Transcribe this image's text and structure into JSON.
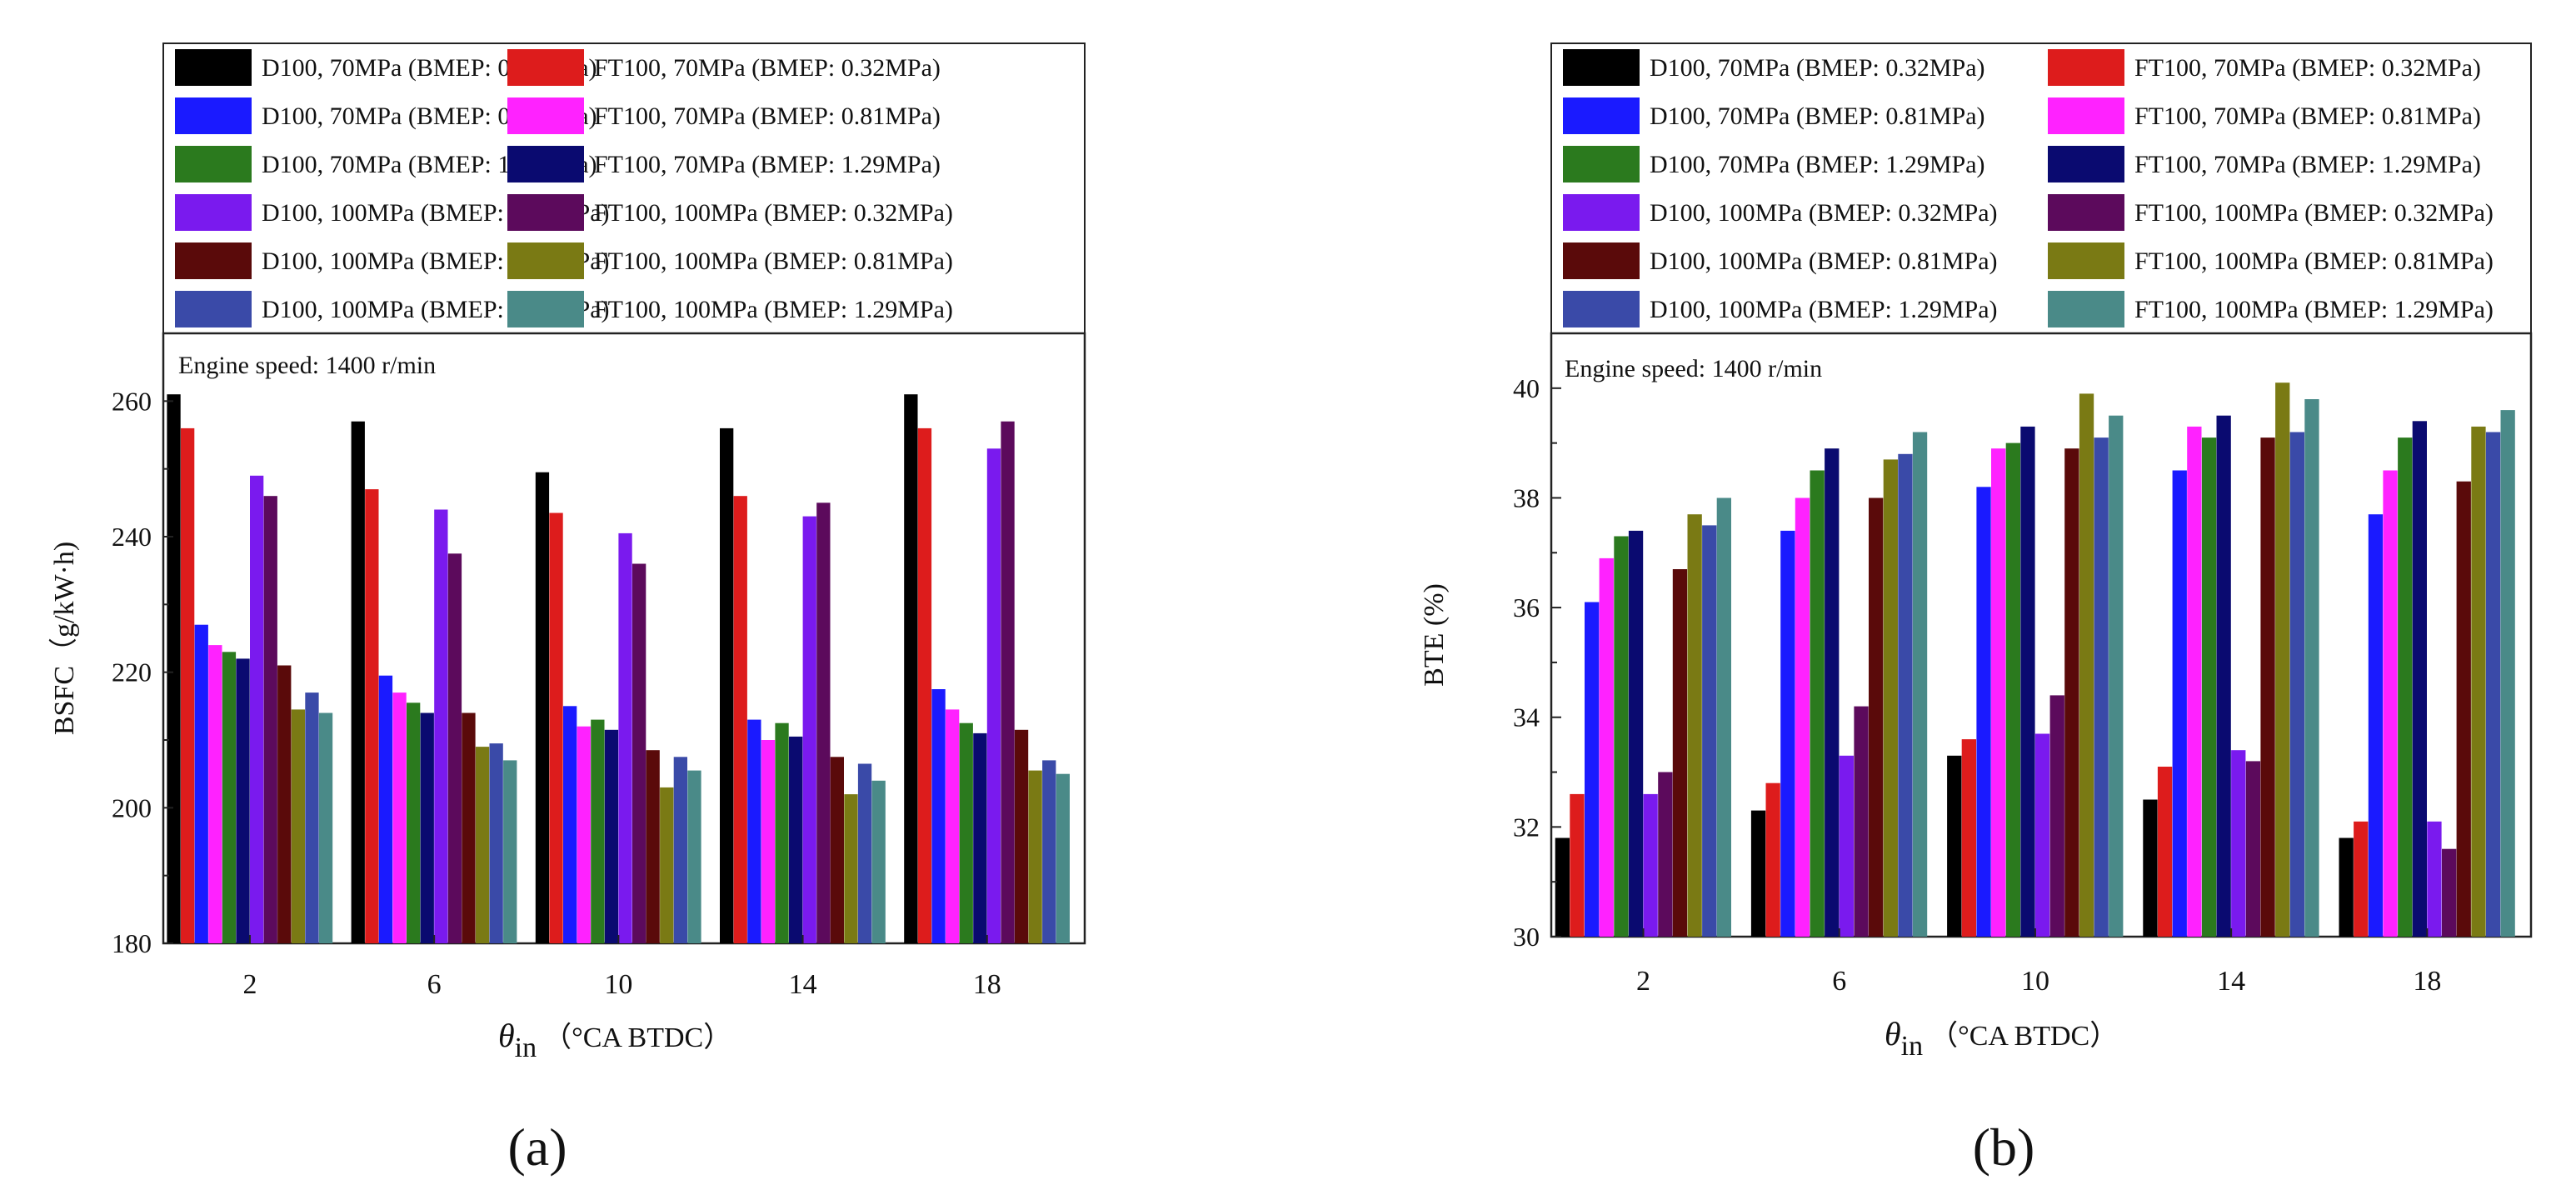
{
  "chart_data": [
    {
      "panel_label": "a",
      "type": "bar",
      "title": "",
      "annotation": "Engine speed: 1400 r/min",
      "ylabel": "BSFC（g/kW·h)",
      "xlabel_main": "θ",
      "xlabel_sub": "in",
      "xlabel_unit": "（°CA BTDC）",
      "categories": [
        "2",
        "6",
        "10",
        "14",
        "18"
      ],
      "ylim": [
        180,
        270
      ],
      "yticks": [
        180,
        200,
        220,
        240,
        260
      ],
      "legend_position": "top",
      "series": [
        {
          "name": "D100, 70MPa (BMEP: 0.32MPa)",
          "color": "#000000",
          "values": [
            261,
            257,
            249.5,
            256,
            261
          ]
        },
        {
          "name": "FT100, 70MPa (BMEP: 0.32MPa)",
          "color": "#dd1c1c",
          "values": [
            256,
            247,
            243.5,
            246,
            256
          ]
        },
        {
          "name": "D100, 70MPa (BMEP: 0.81MPa)",
          "color": "#1a1aff",
          "values": [
            227,
            219.5,
            215,
            213,
            217.5
          ]
        },
        {
          "name": "FT100, 70MPa (BMEP: 0.81MPa)",
          "color": "#ff22ff",
          "values": [
            224,
            217,
            212,
            210,
            214.5
          ]
        },
        {
          "name": "D100, 70MPa (BMEP: 1.29MPa)",
          "color": "#2b7a1e",
          "values": [
            223,
            215.5,
            213,
            212.5,
            212.5
          ]
        },
        {
          "name": "FT100, 70MPa (BMEP: 1.29MPa)",
          "color": "#0a0a70",
          "values": [
            222,
            214,
            211.5,
            210.5,
            211
          ]
        },
        {
          "name": "D100, 100MPa (BMEP: 0.32MPa)",
          "color": "#7a1aee",
          "values": [
            249,
            244,
            240.5,
            243,
            253
          ]
        },
        {
          "name": "FT100, 100MPa (BMEP: 0.32MPa)",
          "color": "#5c0a5c",
          "values": [
            246,
            237.5,
            236,
            245,
            257
          ]
        },
        {
          "name": "D100, 100MPa (BMEP: 0.81MPa)",
          "color": "#5a0a0a",
          "values": [
            221,
            214,
            208.5,
            207.5,
            211.5
          ]
        },
        {
          "name": "FT100, 100MPa (BMEP: 0.81MPa)",
          "color": "#7a7a14",
          "values": [
            214.5,
            209,
            203,
            202,
            205.5
          ]
        },
        {
          "name": "D100, 100MPa (BMEP: 1.29MPa)",
          "color": "#3a4aa8",
          "values": [
            217,
            209.5,
            207.5,
            206.5,
            207
          ]
        },
        {
          "name": "FT100, 100MPa (BMEP: 1.29MPa)",
          "color": "#4a8a88",
          "values": [
            214,
            207,
            205.5,
            204,
            205
          ]
        }
      ]
    },
    {
      "panel_label": "b",
      "type": "bar",
      "title": "",
      "annotation": "Engine speed: 1400 r/min",
      "ylabel": "BTE (%)",
      "xlabel_main": "θ",
      "xlabel_sub": "in",
      "xlabel_unit": "（°CA BTDC）",
      "categories": [
        "2",
        "6",
        "10",
        "14",
        "18"
      ],
      "ylim": [
        30,
        41
      ],
      "yticks": [
        30,
        32,
        34,
        36,
        38,
        40
      ],
      "legend_position": "top",
      "series": [
        {
          "name": "D100, 70MPa (BMEP: 0.32MPa)",
          "color": "#000000",
          "values": [
            31.8,
            32.3,
            33.3,
            32.5,
            31.8
          ]
        },
        {
          "name": "FT100, 70MPa (BMEP: 0.32MPa)",
          "color": "#dd1c1c",
          "values": [
            32.6,
            32.8,
            33.6,
            33.1,
            32.1
          ]
        },
        {
          "name": "D100, 70MPa (BMEP: 0.81MPa)",
          "color": "#1a1aff",
          "values": [
            36.1,
            37.4,
            38.2,
            38.5,
            37.7
          ]
        },
        {
          "name": "FT100, 70MPa (BMEP: 0.81MPa)",
          "color": "#ff22ff",
          "values": [
            36.9,
            38.0,
            38.9,
            39.3,
            38.5
          ]
        },
        {
          "name": "D100, 70MPa (BMEP: 1.29MPa)",
          "color": "#2b7a1e",
          "values": [
            37.3,
            38.5,
            39.0,
            39.1,
            39.1
          ]
        },
        {
          "name": "FT100, 70MPa (BMEP: 1.29MPa)",
          "color": "#0a0a70",
          "values": [
            37.4,
            38.9,
            39.3,
            39.5,
            39.4
          ]
        },
        {
          "name": "D100, 100MPa (BMEP: 0.32MPa)",
          "color": "#7a1aee",
          "values": [
            32.6,
            33.3,
            33.7,
            33.4,
            32.1
          ]
        },
        {
          "name": "FT100, 100MPa (BMEP: 0.32MPa)",
          "color": "#5c0a5c",
          "values": [
            33.0,
            34.2,
            34.4,
            33.2,
            31.6
          ]
        },
        {
          "name": "D100, 100MPa (BMEP: 0.81MPa)",
          "color": "#5a0a0a",
          "values": [
            36.7,
            38.0,
            38.9,
            39.1,
            38.3
          ]
        },
        {
          "name": "FT100, 100MPa (BMEP: 0.81MPa)",
          "color": "#7a7a14",
          "values": [
            37.7,
            38.7,
            39.9,
            40.1,
            39.3
          ]
        },
        {
          "name": "D100, 100MPa (BMEP: 1.29MPa)",
          "color": "#3a4aa8",
          "values": [
            37.5,
            38.8,
            39.1,
            39.2,
            39.2
          ]
        },
        {
          "name": "FT100, 100MPa (BMEP: 1.29MPa)",
          "color": "#4a8a88",
          "values": [
            38.0,
            39.2,
            39.5,
            39.8,
            39.6
          ]
        }
      ]
    }
  ],
  "panel_captions": [
    "(a)",
    "(b)"
  ]
}
